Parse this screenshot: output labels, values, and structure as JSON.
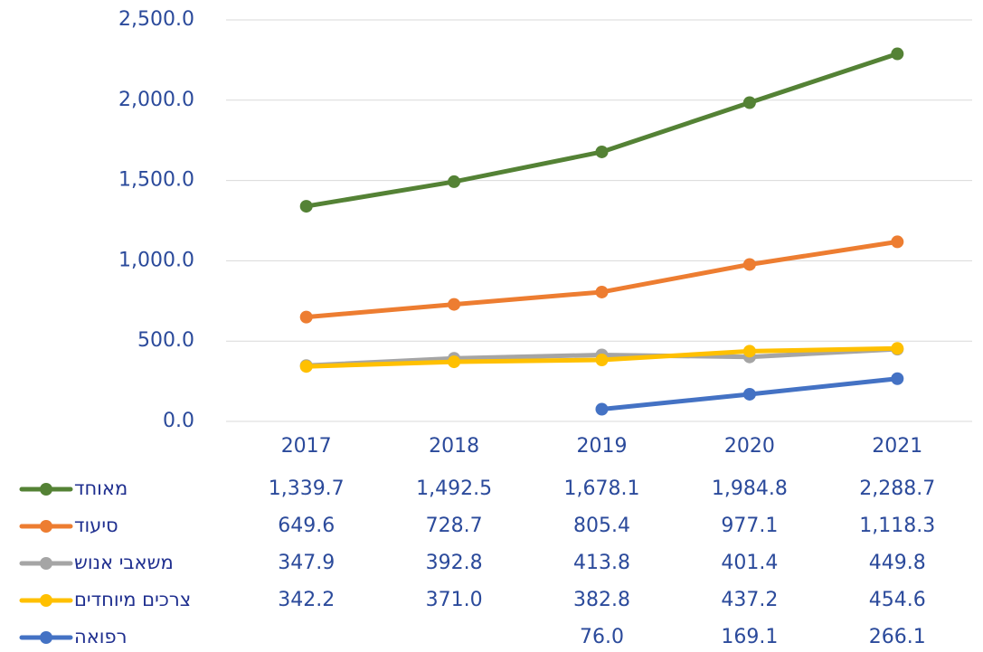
{
  "chart_data": {
    "type": "line",
    "categories": [
      "2017",
      "2018",
      "2019",
      "2020",
      "2021"
    ],
    "series": [
      {
        "name": "מאוחד",
        "color": "#548235",
        "values": [
          1339.7,
          1492.5,
          1678.1,
          1984.8,
          2288.7
        ],
        "value_labels": [
          "1,339.7",
          "1,492.5",
          "1,678.1",
          "1,984.8",
          "2,288.7"
        ]
      },
      {
        "name": "סיעוד",
        "color": "#ED7D31",
        "values": [
          649.6,
          728.7,
          805.4,
          977.1,
          1118.3
        ],
        "value_labels": [
          "649.6",
          "728.7",
          "805.4",
          "977.1",
          "1,118.3"
        ]
      },
      {
        "name": "משאבי אנוש",
        "color": "#A5A5A5",
        "values": [
          347.9,
          392.8,
          413.8,
          401.4,
          449.8
        ],
        "value_labels": [
          "347.9",
          "392.8",
          "413.8",
          "401.4",
          "449.8"
        ]
      },
      {
        "name": "צרכים מיוחדים",
        "color": "#FFC000",
        "values": [
          342.2,
          371.0,
          382.8,
          437.2,
          454.6
        ],
        "value_labels": [
          "342.2",
          "371.0",
          "382.8",
          "437.2",
          "454.6"
        ]
      },
      {
        "name": "רפואה",
        "color": "#4472C4",
        "values": [
          null,
          null,
          76.0,
          169.1,
          266.1
        ],
        "value_labels": [
          null,
          null,
          "76.0",
          "169.1",
          "266.1"
        ]
      }
    ],
    "ylim": [
      0,
      2500
    ],
    "yticks": [
      {
        "value": 0,
        "label": "0.0"
      },
      {
        "value": 500,
        "label": "500.0"
      },
      {
        "value": 1000,
        "label": "1,000.0"
      },
      {
        "value": 1500,
        "label": "1,500.0"
      },
      {
        "value": 2000,
        "label": "2,000.0"
      },
      {
        "value": 2500,
        "label": "2,500.0"
      }
    ],
    "grid": true
  }
}
